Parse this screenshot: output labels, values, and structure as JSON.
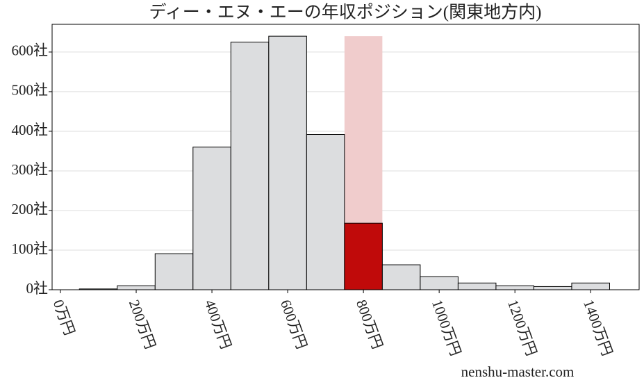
{
  "chart_data": {
    "type": "histogram",
    "title": "ディー・エヌ・エーの年収ポジション(関東地方内)",
    "bins": [
      50,
      150,
      250,
      350,
      450,
      550,
      650,
      750,
      850,
      950,
      1050,
      1150,
      1250,
      1350,
      1450
    ],
    "counts": [
      2,
      10,
      91,
      360,
      625,
      640,
      392,
      168,
      63,
      33,
      17,
      10,
      8,
      17
    ],
    "color": "#dcdddf",
    "highlight": {
      "range": [
        750,
        850
      ],
      "color": "#c00a0a",
      "band_color": "#f0cccc"
    },
    "xlim": [
      -22,
      1528
    ],
    "ylim": [
      0,
      670
    ],
    "xticks": [
      {
        "value": 0,
        "label": "0万円"
      },
      {
        "value": 200,
        "label": "200万円"
      },
      {
        "value": 400,
        "label": "400万円"
      },
      {
        "value": 600,
        "label": "600万円"
      },
      {
        "value": 800,
        "label": "800万円"
      },
      {
        "value": 1000,
        "label": "1000万円"
      },
      {
        "value": 1200,
        "label": "1200万円"
      },
      {
        "value": 1400,
        "label": "1400万円"
      }
    ],
    "yticks": [
      {
        "value": 0,
        "label": "0社"
      },
      {
        "value": 100,
        "label": "100社"
      },
      {
        "value": 200,
        "label": "200社"
      },
      {
        "value": 300,
        "label": "300社"
      },
      {
        "value": 400,
        "label": "400社"
      },
      {
        "value": 500,
        "label": "500社"
      },
      {
        "value": 600,
        "label": "600社"
      }
    ],
    "grid": true,
    "watermark": "nenshu-master.com"
  }
}
